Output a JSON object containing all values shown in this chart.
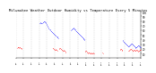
{
  "title": "Milwaukee Weather Outdoor Humidity vs Temperature Every 5 Minutes",
  "title_fontsize": 2.8,
  "background_color": "#ffffff",
  "blue_color": "#0000ff",
  "red_color": "#ff0000",
  "ylim": [
    0,
    100
  ],
  "xlim": [
    0,
    288
  ],
  "y_ticks": [
    10,
    20,
    30,
    40,
    50,
    60,
    70,
    80,
    90,
    100
  ],
  "grid_color": "#bbbbbb",
  "blue_x": [
    55,
    56,
    57,
    58,
    59,
    60,
    62,
    63,
    65,
    66,
    67,
    68,
    69,
    70,
    71,
    72,
    73,
    74,
    75,
    76,
    78,
    79,
    80,
    81,
    82,
    83,
    84,
    85,
    86,
    87,
    88,
    89,
    90,
    91,
    92,
    93,
    95,
    96,
    97,
    98,
    128,
    129,
    130,
    131,
    132,
    133,
    134,
    135,
    136,
    137,
    138,
    139,
    140,
    141,
    142,
    143,
    144,
    145,
    146,
    147,
    148,
    149,
    150,
    151,
    152,
    153,
    154,
    155,
    156,
    157,
    158,
    159,
    247,
    248,
    249,
    250,
    251,
    252,
    253,
    254,
    255,
    256,
    257,
    258,
    259,
    260,
    261,
    262,
    263,
    264,
    265,
    266,
    267,
    268,
    269,
    270,
    271,
    272,
    273,
    274,
    275,
    276,
    277,
    278,
    279,
    280,
    281,
    282,
    283,
    284,
    285,
    286,
    287,
    288
  ],
  "blue_y": [
    75,
    76,
    77,
    76,
    75,
    76,
    77,
    78,
    79,
    80,
    79,
    78,
    77,
    75,
    73,
    71,
    69,
    67,
    65,
    63,
    62,
    61,
    60,
    59,
    58,
    57,
    56,
    55,
    54,
    53,
    52,
    51,
    50,
    49,
    48,
    47,
    46,
    45,
    44,
    43,
    60,
    61,
    62,
    63,
    64,
    65,
    64,
    63,
    62,
    61,
    60,
    59,
    58,
    57,
    56,
    55,
    54,
    53,
    52,
    51,
    50,
    49,
    48,
    47,
    46,
    45,
    44,
    43,
    42,
    41,
    40,
    39,
    38,
    37,
    36,
    35,
    34,
    33,
    32,
    31,
    30,
    29,
    28,
    27,
    26,
    25,
    26,
    27,
    28,
    29,
    30,
    31,
    32,
    31,
    30,
    29,
    28,
    27,
    26,
    25,
    24,
    23,
    22,
    23,
    24,
    25,
    26,
    27,
    28,
    27,
    26,
    25,
    24,
    23
  ],
  "red_x": [
    3,
    4,
    5,
    6,
    7,
    8,
    9,
    10,
    11,
    12,
    13,
    14,
    85,
    86,
    87,
    88,
    89,
    90,
    91,
    92,
    93,
    94,
    95,
    100,
    101,
    102,
    103,
    104,
    105,
    106,
    107,
    108,
    109,
    110,
    111,
    112,
    113,
    114,
    115,
    160,
    161,
    162,
    163,
    164,
    165,
    166,
    167,
    168,
    169,
    170,
    171,
    172,
    173,
    174,
    175,
    176,
    177,
    178,
    179,
    180,
    200,
    201,
    240,
    241,
    242,
    243,
    244,
    245,
    246,
    260,
    261,
    262,
    263,
    264,
    265,
    266,
    267,
    268,
    269,
    270,
    271,
    272,
    273,
    274,
    275,
    276,
    277,
    278,
    279,
    280,
    281,
    282,
    283,
    284,
    285,
    286,
    287,
    288
  ],
  "red_y": [
    22,
    23,
    24,
    23,
    22,
    23,
    24,
    23,
    22,
    21,
    20,
    21,
    22,
    21,
    20,
    19,
    18,
    17,
    18,
    19,
    18,
    17,
    16,
    20,
    21,
    22,
    21,
    20,
    19,
    18,
    17,
    16,
    15,
    16,
    17,
    16,
    15,
    14,
    13,
    14,
    15,
    16,
    15,
    14,
    13,
    12,
    11,
    12,
    13,
    12,
    11,
    10,
    11,
    12,
    11,
    10,
    11,
    12,
    11,
    10,
    12,
    11,
    18,
    19,
    20,
    19,
    18,
    17,
    16,
    15,
    16,
    17,
    18,
    19,
    20,
    19,
    18,
    17,
    16,
    15,
    16,
    17,
    18,
    17,
    16,
    15,
    16,
    17,
    18,
    17,
    16,
    15,
    14,
    15,
    16,
    17,
    18,
    17
  ],
  "vgrid_x": [
    0,
    18,
    36,
    54,
    72,
    90,
    108,
    126,
    144,
    162,
    180,
    198,
    216,
    234,
    252,
    270,
    288
  ],
  "xtick_labels": [
    "1/1",
    "1/2",
    "1/3",
    "1/4",
    "1/5",
    "1/6",
    "1/7",
    "1/8",
    "1/9",
    "1/10",
    "1/11",
    "1/12",
    "1/13",
    "1/14",
    "1/15",
    "1/16",
    "1/17"
  ]
}
